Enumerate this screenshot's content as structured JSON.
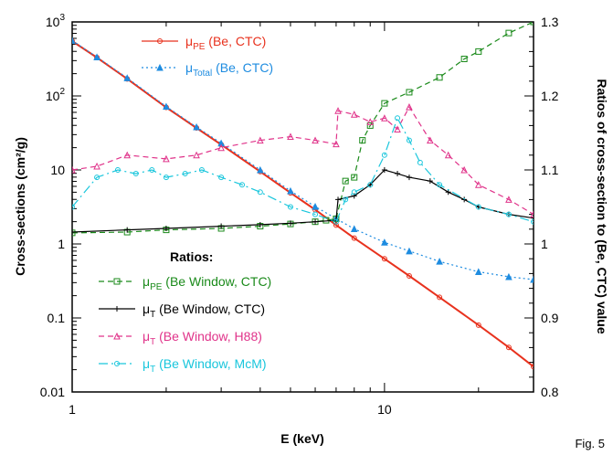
{
  "figure_label": "Fig. 5",
  "chart_data": {
    "type": "line",
    "xlabel": "E  (keV)",
    "ylabel_left": "Cross-sections  (cm²/g)",
    "ylabel_right": "Ratios  of  cross-section  to  (Be,  CTC)  value",
    "x_scale": "log",
    "xlim": [
      1,
      30
    ],
    "x_ticks": [
      {
        "value": 1,
        "label": "1"
      },
      {
        "value": 10,
        "label": "10"
      }
    ],
    "y_left_scale": "log",
    "y_left_lim": [
      0.01,
      1000
    ],
    "y_left_ticks": [
      {
        "value": 0.01,
        "label": "0.01"
      },
      {
        "value": 0.1,
        "label": "0.1"
      },
      {
        "value": 1,
        "label": "1"
      },
      {
        "value": 10,
        "label": "10"
      },
      {
        "value": 100,
        "label": "10",
        "exp": "2"
      },
      {
        "value": 1000,
        "label": "10",
        "exp": "3"
      }
    ],
    "y_right_scale": "linear",
    "y_right_lim": [
      0.8,
      1.3
    ],
    "y_right_ticks": [
      {
        "value": 0.8,
        "label": "0.8"
      },
      {
        "value": 0.9,
        "label": "0.9"
      },
      {
        "value": 1.0,
        "label": "1"
      },
      {
        "value": 1.1,
        "label": "1.1"
      },
      {
        "value": 1.2,
        "label": "1.2"
      },
      {
        "value": 1.3,
        "label": "1.3"
      }
    ],
    "legend_top": [
      {
        "label": "μ",
        "sub": "PE",
        "rest": " (Be, CTC)",
        "color": "#e8321e"
      },
      {
        "label": "μ",
        "sub": "Total",
        "rest": " (Be, CTC)",
        "color": "#1e8ce0"
      }
    ],
    "legend_ratios_title": "Ratios:",
    "legend_ratios": [
      {
        "label": "μ",
        "sub": "PE",
        "rest": " (Be Window, CTC)",
        "color": "#1a8a1a"
      },
      {
        "label": "μ",
        "sub": "T",
        "rest": " (Be Window, CTC)",
        "color": "#000000"
      },
      {
        "label": "μ",
        "sub": "T",
        "rest": " (Be Window, H88)",
        "color": "#e0338a"
      },
      {
        "label": "μ",
        "sub": "T",
        "rest": " (Be Window, McM)",
        "color": "#19c6dc"
      }
    ],
    "series": [
      {
        "name": "μPE (Be, CTC)",
        "axis": "left",
        "color": "#e8321e",
        "marker": "circle",
        "dash": "",
        "x": [
          1,
          1.2,
          1.5,
          2,
          2.5,
          3,
          4,
          5,
          6,
          7,
          8,
          10,
          12,
          15,
          20,
          25,
          30
        ],
        "y": [
          550,
          330,
          170,
          70,
          37,
          22,
          9.5,
          4.9,
          2.9,
          1.8,
          1.2,
          0.63,
          0.37,
          0.19,
          0.08,
          0.04,
          0.022
        ]
      },
      {
        "name": "μTotal (Be, CTC)",
        "axis": "left",
        "color": "#1e8ce0",
        "marker": "triangle",
        "dash": "2,3",
        "x": [
          1,
          1.2,
          1.5,
          2,
          2.5,
          3,
          4,
          5,
          6,
          7,
          8,
          10,
          12,
          15,
          20,
          25,
          30
        ],
        "y": [
          560,
          335,
          175,
          72,
          38,
          23,
          10,
          5.2,
          3.2,
          2.2,
          1.6,
          1.05,
          0.8,
          0.58,
          0.42,
          0.36,
          0.33
        ]
      },
      {
        "name": "μPE (Be Window, CTC)",
        "axis": "right",
        "color": "#1a8a1a",
        "marker": "square",
        "dash": "6,4",
        "x": [
          1,
          1.5,
          2,
          3,
          4,
          5,
          6,
          6.5,
          7,
          7.5,
          8,
          8.5,
          9,
          10,
          12,
          15,
          18,
          20,
          25,
          30
        ],
        "y": [
          1.015,
          1.016,
          1.019,
          1.021,
          1.024,
          1.027,
          1.03,
          1.032,
          1.034,
          1.085,
          1.09,
          1.14,
          1.16,
          1.19,
          1.205,
          1.225,
          1.25,
          1.26,
          1.285,
          1.3
        ]
      },
      {
        "name": "μT (Be Window, CTC)",
        "axis": "right",
        "color": "#000000",
        "marker": "plus",
        "dash": "",
        "x": [
          1,
          1.5,
          2,
          3,
          4,
          5,
          6,
          7,
          7.1,
          8,
          9,
          10,
          11,
          12,
          14,
          16,
          18,
          20,
          25,
          30
        ],
        "y": [
          1.016,
          1.019,
          1.021,
          1.024,
          1.026,
          1.028,
          1.03,
          1.032,
          1.06,
          1.065,
          1.08,
          1.1,
          1.095,
          1.09,
          1.085,
          1.07,
          1.06,
          1.05,
          1.04,
          1.035
        ]
      },
      {
        "name": "μT (Be Window, H88)",
        "axis": "right",
        "color": "#e0338a",
        "marker": "triangle",
        "dash": "6,4",
        "x": [
          1,
          1.2,
          1.5,
          2,
          2.5,
          3,
          4,
          5,
          6,
          7,
          7.1,
          8,
          9,
          10,
          11,
          12,
          14,
          16,
          18,
          20,
          25,
          30
        ],
        "y": [
          1.1,
          1.105,
          1.12,
          1.115,
          1.12,
          1.13,
          1.14,
          1.145,
          1.14,
          1.135,
          1.18,
          1.175,
          1.165,
          1.17,
          1.155,
          1.185,
          1.14,
          1.12,
          1.1,
          1.08,
          1.06,
          1.04
        ]
      },
      {
        "name": "μT (Be Window, McM)",
        "axis": "right",
        "color": "#19c6dc",
        "marker": "circle",
        "dash": "10,4,2,4",
        "x": [
          1,
          1.2,
          1.4,
          1.6,
          1.8,
          2,
          2.3,
          2.6,
          3,
          3.5,
          4,
          5,
          6,
          7,
          7.5,
          8,
          9,
          10,
          11,
          12,
          13,
          15,
          20,
          25,
          30
        ],
        "y": [
          1.05,
          1.09,
          1.1,
          1.095,
          1.1,
          1.09,
          1.095,
          1.1,
          1.09,
          1.08,
          1.07,
          1.05,
          1.04,
          1.03,
          1.06,
          1.07,
          1.08,
          1.12,
          1.17,
          1.14,
          1.11,
          1.08,
          1.05,
          1.04,
          1.03
        ]
      }
    ]
  }
}
